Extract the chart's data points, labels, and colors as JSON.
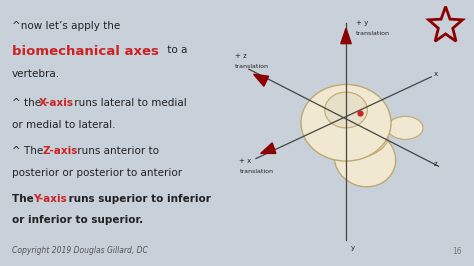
{
  "bg_color": "#c8d0da",
  "right_panel_bg": "#f0ede5",
  "title_line1": "^now let’s apply the",
  "title_bold_red": "biomechanical axes",
  "title_line1_suffix": " to a",
  "title_line2": "vertebra.",
  "copyright": "Copyright 2019 Douglas Gillard, DC",
  "page_num": "16",
  "red_color": "#cc2222",
  "dark_color": "#222222",
  "arrow_color": "#8b0000",
  "axis_color": "#444444",
  "vertebra_fill": "#f0e8d0",
  "vertebra_edge": "#c0a870"
}
